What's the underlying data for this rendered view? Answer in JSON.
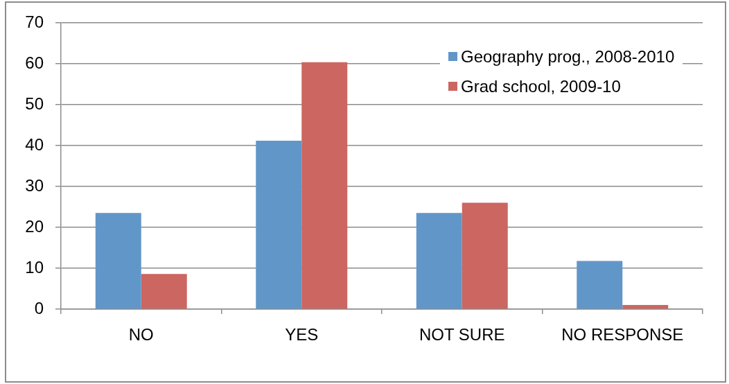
{
  "chart_data": {
    "type": "bar",
    "categories": [
      "NO",
      "YES",
      "NOT SURE",
      "NO RESPONSE"
    ],
    "series": [
      {
        "name": "Geography prog., 2008-2010",
        "color": "#6196c9",
        "values": [
          23.5,
          41.2,
          23.5,
          11.8
        ]
      },
      {
        "name": "Grad school, 2009-10",
        "color": "#cc6660",
        "values": [
          8.6,
          60.4,
          26,
          1
        ]
      }
    ],
    "ylim": [
      0,
      70
    ],
    "yticks": [
      0,
      10,
      20,
      30,
      40,
      50,
      60,
      70
    ],
    "grid": "y",
    "legend": "top right"
  }
}
